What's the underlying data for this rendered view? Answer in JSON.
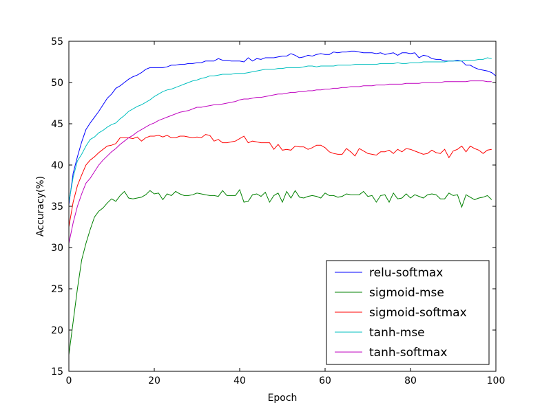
{
  "chart_data": {
    "type": "line",
    "title": "",
    "xlabel": "Epoch",
    "ylabel": "Accuracy(%)",
    "xlim": [
      0,
      100
    ],
    "ylim": [
      15,
      55
    ],
    "xticks": [
      0,
      20,
      40,
      60,
      80,
      100
    ],
    "yticks": [
      15,
      20,
      25,
      30,
      35,
      40,
      45,
      50,
      55
    ],
    "grid": false,
    "legend_position": "lower-right",
    "series": [
      {
        "name": "relu-softmax",
        "color": "#0000ff",
        "values": [
          35.2,
          39.0,
          41.0,
          42.8,
          44.3,
          45.1,
          45.8,
          46.5,
          47.3,
          48.1,
          48.6,
          49.3,
          49.6,
          50.0,
          50.4,
          50.7,
          50.9,
          51.2,
          51.6,
          51.8,
          51.8,
          51.8,
          51.8,
          51.9,
          52.1,
          52.1,
          52.2,
          52.2,
          52.3,
          52.3,
          52.4,
          52.4,
          52.6,
          52.6,
          52.6,
          52.9,
          52.7,
          52.7,
          52.6,
          52.6,
          52.6,
          52.5,
          53.0,
          52.6,
          52.9,
          52.8,
          53.0,
          53.0,
          53.0,
          53.1,
          53.2,
          53.2,
          53.5,
          53.3,
          53.0,
          53.1,
          53.3,
          53.2,
          53.4,
          53.5,
          53.4,
          53.4,
          53.7,
          53.6,
          53.7,
          53.7,
          53.8,
          53.8,
          53.7,
          53.6,
          53.6,
          53.6,
          53.5,
          53.6,
          53.4,
          53.5,
          53.6,
          53.3,
          53.6,
          53.6,
          53.5,
          53.6,
          53.0,
          53.3,
          53.2,
          52.9,
          52.8,
          52.8,
          52.6,
          52.6,
          52.6,
          52.7,
          52.6,
          52.1,
          52.1,
          51.8,
          51.6,
          51.5,
          51.4,
          51.2,
          50.8
        ]
      },
      {
        "name": "sigmoid-mse",
        "color": "#008000",
        "values": [
          17.0,
          21.0,
          25.0,
          28.5,
          30.5,
          32.2,
          33.7,
          34.4,
          34.8,
          35.4,
          35.9,
          35.6,
          36.3,
          36.8,
          36.0,
          35.9,
          36.0,
          36.1,
          36.4,
          36.9,
          36.5,
          36.6,
          35.8,
          36.5,
          36.3,
          36.8,
          36.5,
          36.3,
          36.3,
          36.4,
          36.6,
          36.5,
          36.4,
          36.3,
          36.3,
          36.2,
          36.9,
          36.3,
          36.3,
          36.3,
          37.0,
          35.5,
          35.6,
          36.4,
          36.5,
          36.2,
          36.7,
          35.5,
          36.3,
          36.6,
          35.5,
          36.8,
          36.0,
          36.9,
          36.1,
          36.0,
          36.2,
          36.3,
          36.2,
          36.0,
          36.6,
          36.3,
          36.3,
          36.1,
          36.2,
          36.5,
          36.4,
          36.4,
          36.4,
          36.8,
          36.2,
          36.3,
          35.5,
          36.3,
          36.4,
          35.5,
          36.6,
          35.9,
          36.0,
          36.5,
          36.0,
          36.4,
          36.2,
          36.0,
          36.4,
          36.5,
          36.4,
          35.9,
          35.9,
          36.6,
          36.3,
          36.4,
          34.9,
          36.4,
          36.1,
          35.8,
          36.0,
          36.1,
          36.3,
          35.8
        ]
      },
      {
        "name": "sigmoid-softmax",
        "color": "#ff0000",
        "values": [
          32.5,
          35.5,
          37.5,
          38.8,
          40.0,
          40.6,
          41.0,
          41.5,
          41.9,
          42.3,
          42.4,
          42.6,
          43.3,
          43.3,
          43.3,
          43.2,
          43.4,
          42.9,
          43.3,
          43.5,
          43.5,
          43.6,
          43.4,
          43.6,
          43.3,
          43.3,
          43.5,
          43.5,
          43.4,
          43.3,
          43.4,
          43.3,
          43.7,
          43.6,
          42.9,
          43.1,
          42.7,
          42.7,
          42.8,
          42.9,
          43.2,
          43.5,
          42.7,
          42.9,
          42.8,
          42.7,
          42.7,
          42.7,
          41.9,
          42.5,
          41.8,
          41.9,
          41.8,
          42.3,
          42.2,
          42.2,
          41.9,
          42.1,
          42.4,
          42.4,
          42.1,
          41.6,
          41.4,
          41.3,
          41.3,
          42.0,
          41.6,
          41.1,
          42.0,
          41.7,
          41.4,
          41.3,
          41.2,
          41.6,
          41.6,
          41.8,
          41.4,
          41.9,
          41.6,
          42.0,
          41.9,
          41.7,
          41.5,
          41.3,
          41.4,
          41.8,
          41.5,
          41.4,
          41.9,
          40.9,
          41.7,
          41.9,
          42.3,
          41.6,
          42.3,
          42.0,
          41.8,
          41.4,
          41.8,
          41.9
        ]
      },
      {
        "name": "tanh-mse",
        "color": "#00bfbf",
        "values": [
          35.5,
          38.5,
          40.5,
          41.3,
          42.3,
          43.1,
          43.4,
          43.9,
          44.2,
          44.6,
          44.9,
          45.1,
          45.6,
          46.0,
          46.5,
          46.8,
          47.1,
          47.3,
          47.6,
          47.9,
          48.3,
          48.6,
          48.9,
          49.1,
          49.2,
          49.4,
          49.6,
          49.8,
          50.0,
          50.2,
          50.3,
          50.5,
          50.6,
          50.8,
          50.8,
          50.9,
          51.0,
          51.0,
          51.0,
          51.1,
          51.1,
          51.1,
          51.2,
          51.3,
          51.4,
          51.5,
          51.6,
          51.6,
          51.6,
          51.7,
          51.7,
          51.8,
          51.8,
          51.8,
          51.8,
          51.9,
          52.0,
          52.0,
          51.9,
          52.0,
          52.0,
          52.0,
          52.0,
          52.1,
          52.1,
          52.1,
          52.1,
          52.2,
          52.2,
          52.2,
          52.2,
          52.2,
          52.2,
          52.3,
          52.3,
          52.3,
          52.3,
          52.4,
          52.3,
          52.3,
          52.4,
          52.4,
          52.4,
          52.5,
          52.5,
          52.5,
          52.5,
          52.5,
          52.5,
          52.6,
          52.6,
          52.6,
          52.6,
          52.7,
          52.7,
          52.7,
          52.8,
          52.8,
          53.0,
          52.9
        ]
      },
      {
        "name": "tanh-softmax",
        "color": "#bf00bf",
        "values": [
          30.5,
          33.0,
          35.0,
          36.5,
          37.8,
          38.4,
          39.2,
          40.0,
          40.6,
          41.1,
          41.6,
          42.0,
          42.5,
          42.9,
          43.3,
          43.6,
          44.0,
          44.3,
          44.6,
          44.9,
          45.1,
          45.4,
          45.6,
          45.8,
          46.0,
          46.2,
          46.4,
          46.5,
          46.6,
          46.8,
          47.0,
          47.0,
          47.1,
          47.2,
          47.3,
          47.3,
          47.4,
          47.5,
          47.6,
          47.7,
          47.9,
          48.0,
          48.0,
          48.1,
          48.2,
          48.2,
          48.3,
          48.4,
          48.5,
          48.6,
          48.6,
          48.7,
          48.8,
          48.8,
          48.9,
          48.9,
          49.0,
          49.0,
          49.1,
          49.1,
          49.2,
          49.2,
          49.3,
          49.3,
          49.4,
          49.4,
          49.5,
          49.5,
          49.5,
          49.6,
          49.6,
          49.6,
          49.7,
          49.7,
          49.7,
          49.8,
          49.8,
          49.8,
          49.8,
          49.9,
          49.9,
          49.9,
          49.9,
          50.0,
          50.0,
          50.0,
          50.0,
          50.0,
          50.1,
          50.1,
          50.1,
          50.1,
          50.1,
          50.1,
          50.2,
          50.2,
          50.2,
          50.2,
          50.1,
          50.1
        ]
      }
    ]
  }
}
